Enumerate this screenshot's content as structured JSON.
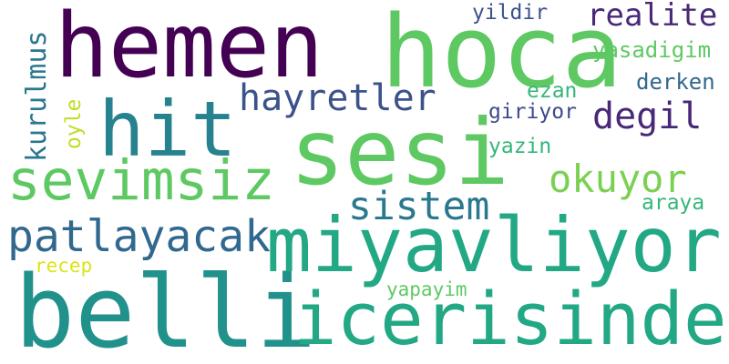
{
  "words": {
    "hemen": {
      "text": "hemen",
      "color": "#440154"
    },
    "hoca": {
      "text": "hoca",
      "color": "#5ec962"
    },
    "sesi": {
      "text": "sesi",
      "color": "#5ec962"
    },
    "hit": {
      "text": "hit",
      "color": "#26828e"
    },
    "belli": {
      "text": "belli",
      "color": "#21918c"
    },
    "icerisinde": {
      "text": "icerisinde",
      "color": "#22a884"
    },
    "miyavliyor": {
      "text": "miyavliyor",
      "color": "#22a884"
    },
    "sevimsiz": {
      "text": "sevimsiz",
      "color": "#5ec962"
    },
    "hayretler": {
      "text": "hayretler",
      "color": "#3b528b"
    },
    "patlayacak": {
      "text": "patlayacak",
      "color": "#31688e"
    },
    "sistem": {
      "text": "sistem",
      "color": "#2a788e"
    },
    "okuyor": {
      "text": "okuyor",
      "color": "#7ad151"
    },
    "degil": {
      "text": "degil",
      "color": "#482878"
    },
    "realite": {
      "text": "realite",
      "color": "#482878"
    },
    "kurulmus": {
      "text": "kurulmus",
      "color": "#2a788e"
    },
    "yildir": {
      "text": "yildir",
      "color": "#3b528b"
    },
    "yasadigim": {
      "text": "yasadigim",
      "color": "#5ec962"
    },
    "derken": {
      "text": "derken",
      "color": "#31688e"
    },
    "ezan": {
      "text": "ezan",
      "color": "#35b779"
    },
    "giriyor": {
      "text": "giriyor",
      "color": "#3e4989"
    },
    "yazin": {
      "text": "yazin",
      "color": "#35b779"
    },
    "araya": {
      "text": "araya",
      "color": "#35b779"
    },
    "oyle": {
      "text": "oyle",
      "color": "#bddf26"
    },
    "recep": {
      "text": "recep",
      "color": "#dde318"
    },
    "yapayim": {
      "text": "yapayim",
      "color": "#5ec962"
    }
  }
}
